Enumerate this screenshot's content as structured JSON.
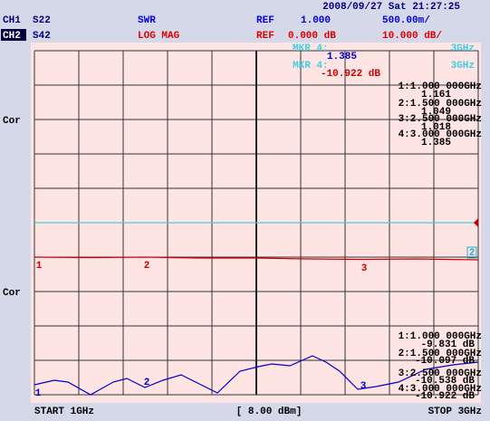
{
  "header": {
    "datetime": "2008/09/27 Sat 21:27:25"
  },
  "channels": [
    {
      "id": "CH1",
      "param": "S22",
      "format": "SWR",
      "ref_label": "REF",
      "ref_value": "1.000",
      "scale": "500.00m/"
    },
    {
      "id": "CH2",
      "param": "S42",
      "format": "LOG MAG",
      "ref_label": "REF",
      "ref_value": "0.000 dB",
      "scale": "10.000 dB/"
    }
  ],
  "side_labels": [
    "Cor",
    "Cor"
  ],
  "active_marker": {
    "ch1_label": "MKR 4:",
    "ch1_freq": "3GHz",
    "ch1_value": "1.385",
    "ch2_label": "MKR 4:",
    "ch2_freq": "3GHz",
    "ch2_value": "-10.922 dB"
  },
  "ch1_markers": [
    {
      "freq": "1:1.000 000GHz",
      "value": "1.161"
    },
    {
      "freq": "2:1.500 000GHz",
      "value": "1.049"
    },
    {
      "freq": "3:2.500 000GHz",
      "value": "1.018"
    },
    {
      "freq": "4:3.000 000GHz",
      "value": "1.385"
    }
  ],
  "ch2_markers": [
    {
      "freq": "1:1.000 000GHz",
      "value": "-9.831 dB"
    },
    {
      "freq": "2:1.500 000GHz",
      "value": "-10.097 dB"
    },
    {
      "freq": "3:2.500 000GHz",
      "value": "-10.538 dB"
    },
    {
      "freq": "4:3.000 000GHz",
      "value": "-10.922 dB"
    }
  ],
  "trace_marker_labels": {
    "ch1": [
      "1",
      "2",
      "3"
    ],
    "ch2": [
      "1",
      "2",
      "3"
    ],
    "ref_box": "2"
  },
  "footer": {
    "start": "START 1GHz",
    "power": "[ 8.00 dBm]",
    "stop": "STOP 3GHz"
  }
}
